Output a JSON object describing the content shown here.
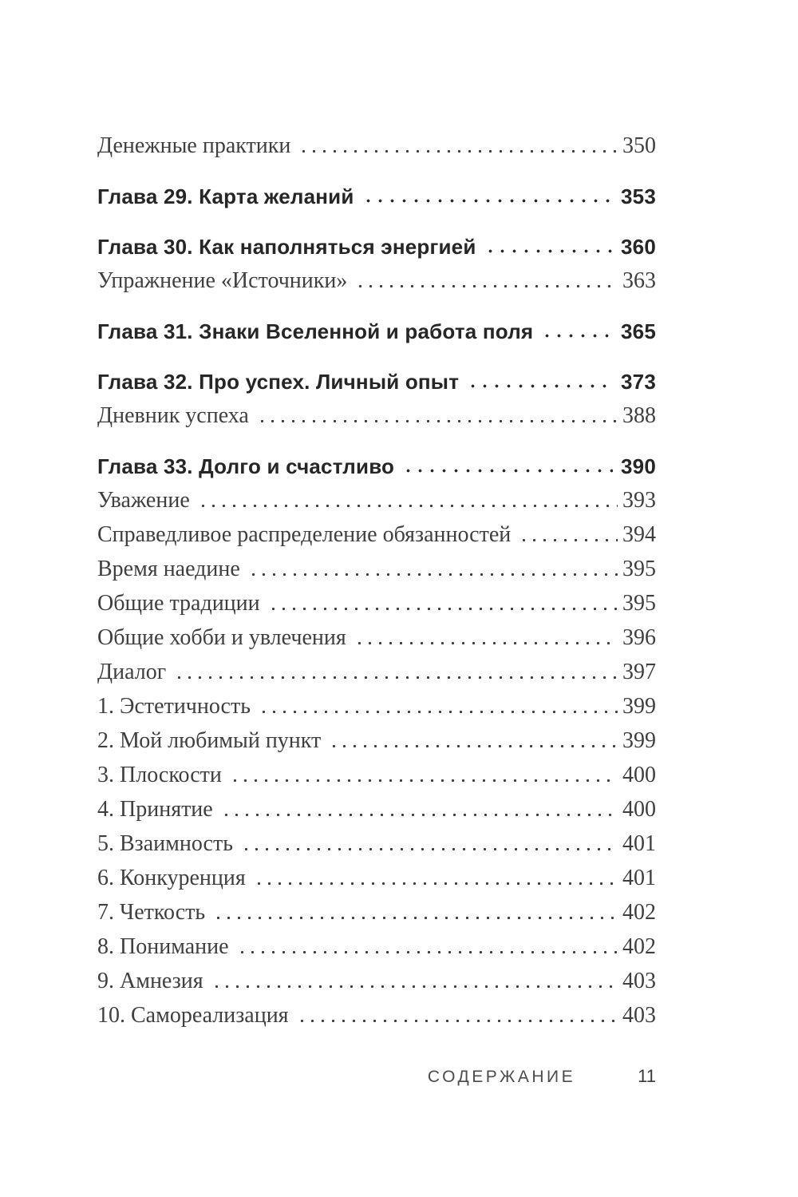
{
  "document": {
    "colors": {
      "background": "#ffffff",
      "serif_text": "#3f3f3f",
      "chapter_text": "#262626",
      "footer_text": "#4c4c4c"
    },
    "footer": {
      "section_label": "СОДЕРЖАНИЕ",
      "page_number": "11"
    },
    "toc": {
      "groups": [
        {
          "entries": [
            {
              "label": "Денежные практики",
              "page": "350",
              "style": "sub"
            }
          ]
        },
        {
          "entries": [
            {
              "label": "Глава 29. Карта желаний",
              "page": "353",
              "style": "chapter"
            }
          ]
        },
        {
          "entries": [
            {
              "label": "Глава 30. Как наполняться энергией",
              "page": "360",
              "style": "chapter"
            },
            {
              "label": "Упражнение «Источники»",
              "page": "363",
              "style": "sub"
            }
          ]
        },
        {
          "entries": [
            {
              "label": "Глава 31. Знаки Вселенной и работа поля",
              "page": "365",
              "style": "chapter"
            }
          ]
        },
        {
          "entries": [
            {
              "label": "Глава 32. Про успех. Личный опыт",
              "page": "373",
              "style": "chapter"
            },
            {
              "label": "Дневник успеха",
              "page": "388",
              "style": "sub"
            }
          ]
        },
        {
          "entries": [
            {
              "label": "Глава 33. Долго и счастливо",
              "page": "390",
              "style": "chapter"
            },
            {
              "label": "Уважение",
              "page": "393",
              "style": "sub"
            },
            {
              "label": "Справедливое распределение обязанностей",
              "page": "394",
              "style": "sub"
            },
            {
              "label": "Время наедине",
              "page": "395",
              "style": "sub"
            },
            {
              "label": "Общие традиции",
              "page": "395",
              "style": "sub"
            },
            {
              "label": "Общие хобби и увлечения",
              "page": "396",
              "style": "sub"
            },
            {
              "label": "Диалог",
              "page": "397",
              "style": "sub"
            },
            {
              "label": "1. Эстетичность",
              "page": "399",
              "style": "sub"
            },
            {
              "label": "2. Мой любимый пункт",
              "page": "399",
              "style": "sub"
            },
            {
              "label": "3. Плоскости",
              "page": "400",
              "style": "sub"
            },
            {
              "label": "4. Принятие",
              "page": "400",
              "style": "sub"
            },
            {
              "label": "5. Взаимность",
              "page": "401",
              "style": "sub"
            },
            {
              "label": "6. Конкуренция",
              "page": "401",
              "style": "sub"
            },
            {
              "label": "7. Четкость",
              "page": "402",
              "style": "sub"
            },
            {
              "label": "8. Понимание",
              "page": "402",
              "style": "sub"
            },
            {
              "label": "9. Амнезия",
              "page": "403",
              "style": "sub"
            },
            {
              "label": "10. Самореализация",
              "page": "403",
              "style": "sub"
            }
          ]
        }
      ]
    }
  }
}
